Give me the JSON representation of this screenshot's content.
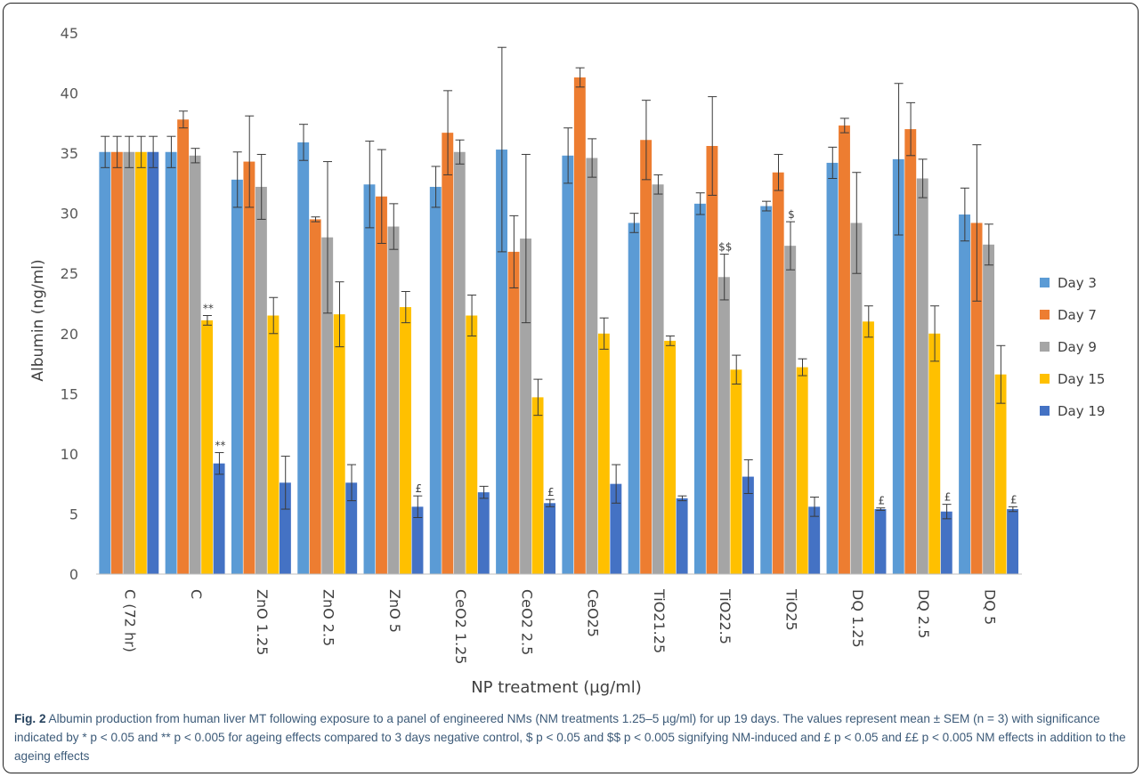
{
  "chart_data": {
    "type": "bar",
    "xlabel": "NP treatment (µg/ml)",
    "ylabel": "Albumin (ng/ml)",
    "ylim": [
      0,
      45
    ],
    "yticks": [
      0,
      5,
      10,
      15,
      20,
      25,
      30,
      35,
      40,
      45
    ],
    "grid": false,
    "legend_position": "right",
    "categories": [
      "C (72 hr)",
      "C",
      "ZnO 1.25",
      "ZnO 2.5",
      "ZnO 5",
      "CeO2 1.25",
      "CeO2 2.5",
      "CeO25",
      "TiO21.25",
      "TiO22.5",
      "TiO25",
      "DQ 1.25",
      "DQ 2.5",
      "DQ 5"
    ],
    "series": [
      {
        "name": "Day 3",
        "color": "#5b9bd5",
        "values": [
          35.1,
          35.1,
          32.8,
          35.9,
          32.4,
          32.2,
          35.3,
          34.8,
          29.2,
          30.8,
          30.6,
          34.2,
          34.5,
          29.9
        ],
        "errors": [
          1.3,
          1.3,
          2.3,
          1.5,
          3.6,
          1.7,
          8.5,
          2.3,
          0.8,
          0.9,
          0.4,
          1.3,
          6.3,
          2.2
        ]
      },
      {
        "name": "Day 7",
        "color": "#ed7d31",
        "values": [
          35.1,
          37.8,
          34.3,
          29.5,
          31.4,
          36.7,
          26.8,
          41.3,
          36.1,
          35.6,
          33.4,
          37.3,
          37.0,
          29.2
        ],
        "errors": [
          1.3,
          0.7,
          3.8,
          0.2,
          3.9,
          3.5,
          3.0,
          0.8,
          3.3,
          4.1,
          1.5,
          0.6,
          2.2,
          6.5
        ]
      },
      {
        "name": "Day 9",
        "color": "#a5a5a5",
        "values": [
          35.1,
          34.8,
          32.2,
          28.0,
          28.9,
          35.1,
          27.9,
          34.6,
          32.4,
          24.7,
          27.3,
          29.2,
          32.9,
          27.4
        ],
        "errors": [
          1.3,
          0.6,
          2.7,
          6.3,
          1.9,
          1.0,
          7.0,
          1.6,
          0.8,
          1.9,
          2.0,
          4.2,
          1.6,
          1.7
        ]
      },
      {
        "name": "Day 15",
        "color": "#ffc000",
        "values": [
          35.1,
          21.1,
          21.5,
          21.6,
          22.2,
          21.5,
          14.7,
          20.0,
          19.4,
          17.0,
          17.2,
          21.0,
          20.0,
          16.6
        ],
        "errors": [
          1.3,
          0.4,
          1.5,
          2.7,
          1.3,
          1.7,
          1.5,
          1.3,
          0.4,
          1.2,
          0.7,
          1.3,
          2.3,
          2.4
        ]
      },
      {
        "name": "Day 19",
        "color": "#4472c4",
        "values": [
          35.1,
          9.2,
          7.6,
          7.6,
          5.6,
          6.8,
          5.9,
          7.5,
          6.3,
          8.1,
          5.6,
          5.4,
          5.2,
          5.4
        ],
        "errors": [
          1.3,
          0.9,
          2.2,
          1.5,
          0.9,
          0.5,
          0.3,
          1.6,
          0.2,
          1.4,
          0.8,
          0.1,
          0.6,
          0.2
        ]
      }
    ],
    "annotations": [
      {
        "category": "C",
        "series": "Day 15",
        "text": "**"
      },
      {
        "category": "C",
        "series": "Day 19",
        "text": "**"
      },
      {
        "category": "ZnO 5",
        "series": "Day 19",
        "text": "£"
      },
      {
        "category": "CeO2 2.5",
        "series": "Day 19",
        "text": "£"
      },
      {
        "category": "TiO22.5",
        "series": "Day 9",
        "text": "$$"
      },
      {
        "category": "TiO25",
        "series": "Day 9",
        "text": "$"
      },
      {
        "category": "DQ 1.25",
        "series": "Day 19",
        "text": "£"
      },
      {
        "category": "DQ 2.5",
        "series": "Day 19",
        "text": "£"
      },
      {
        "category": "DQ 5",
        "series": "Day 19",
        "text": "£"
      }
    ]
  },
  "caption": {
    "label": "Fig. 2",
    "text": "Albumin production from human liver MT following exposure to a panel of engineered NMs (NM treatments 1.25–5 µg/ml) for up 19 days. The values represent mean ± SEM (n = 3) with significance indicated by * p < 0.05 and ** p < 0.005 for ageing effects compared to 3 days negative control, $ p < 0.05 and $$ p < 0.005 signifying NM-induced and £ p < 0.05 and ££ p < 0.005 NM effects in addition to the ageing effects"
  }
}
